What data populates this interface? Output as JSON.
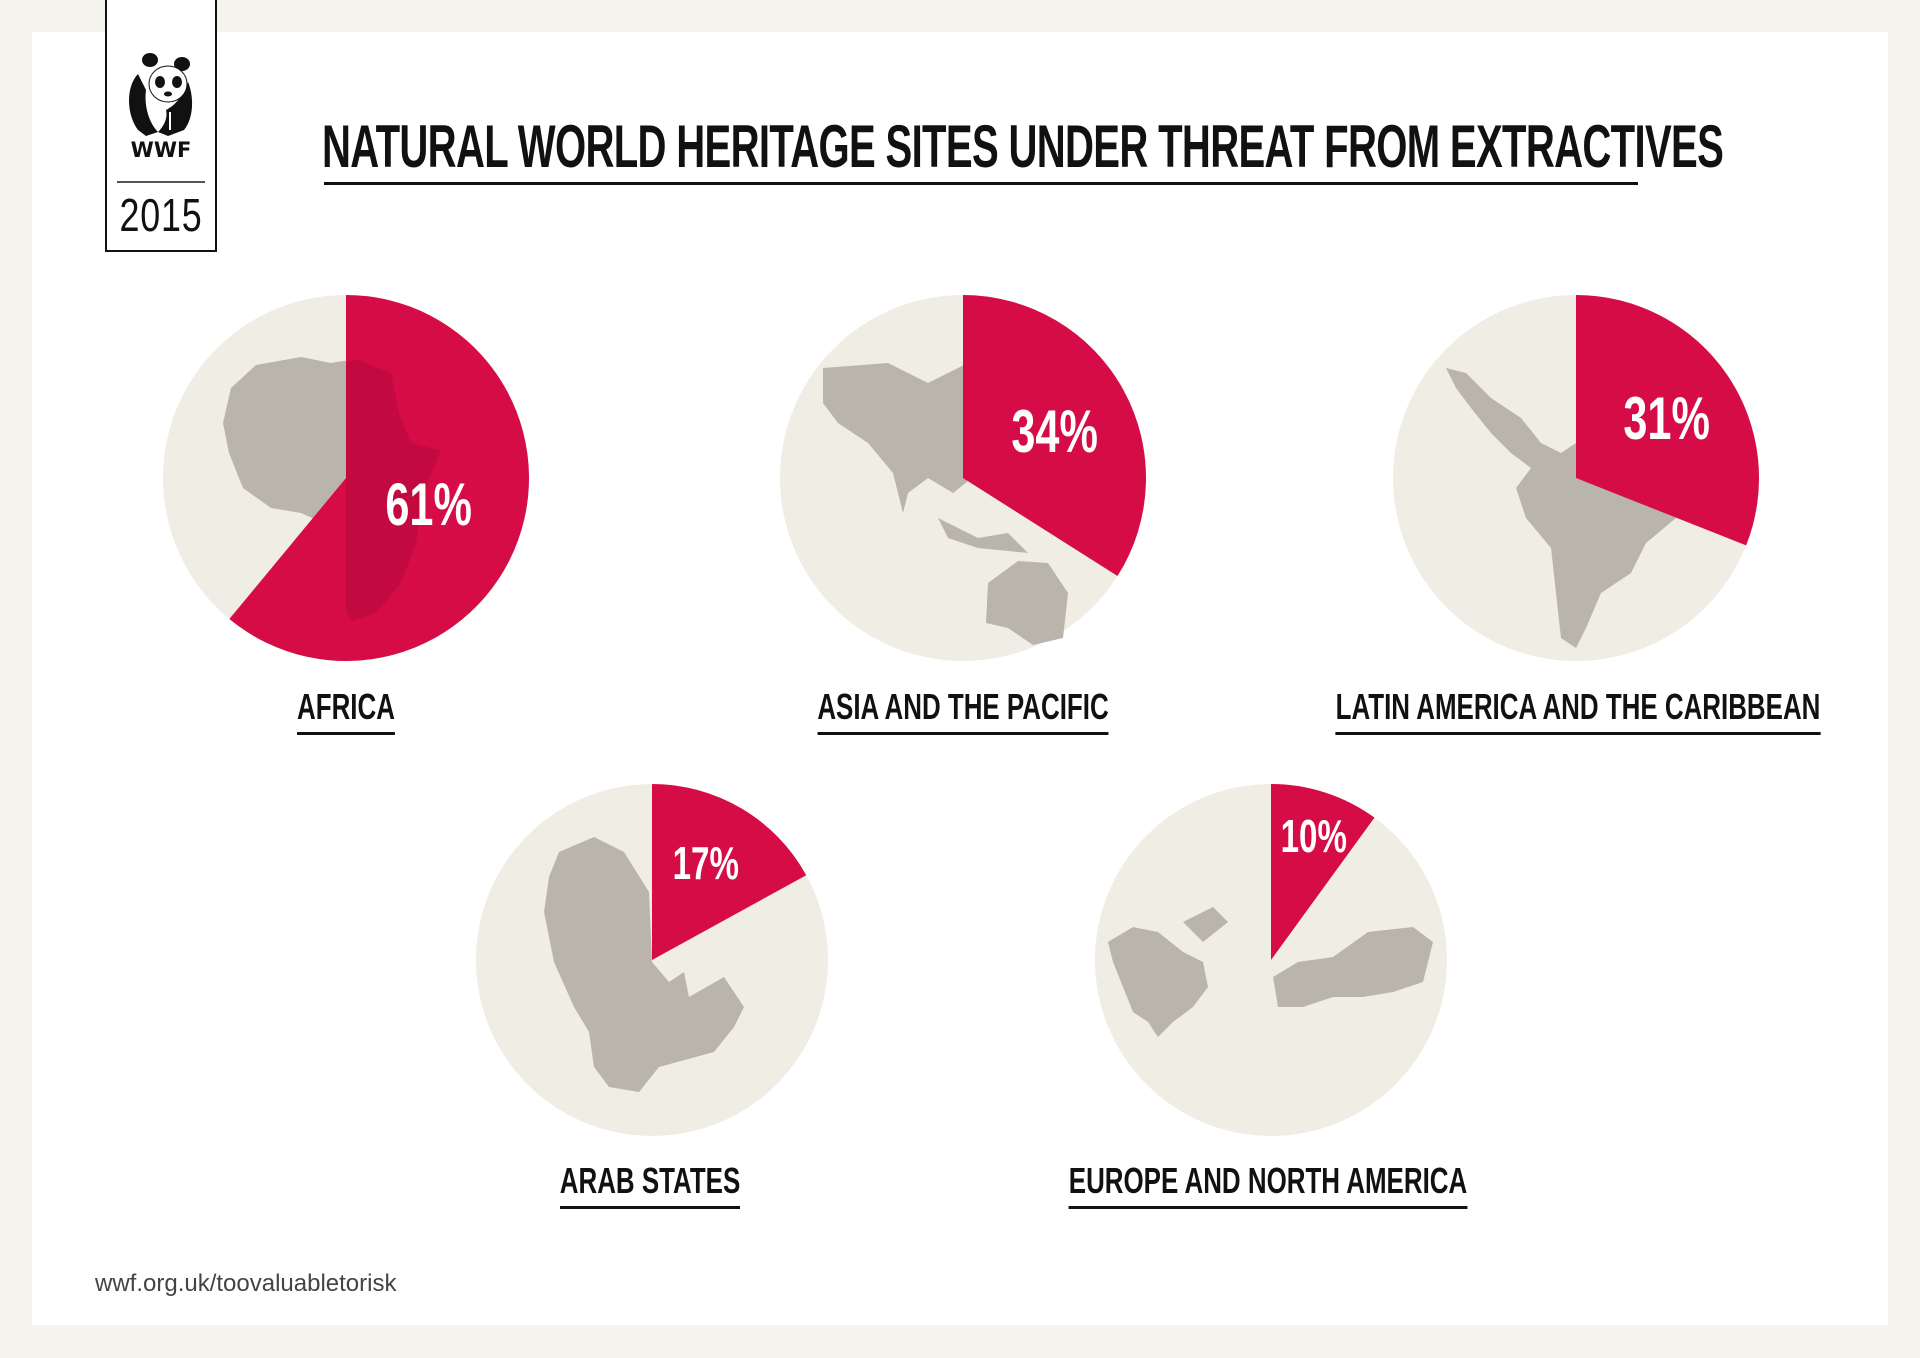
{
  "header": {
    "logo_text": "WWF",
    "year": "2015",
    "title": "NATURAL WORLD HERITAGE SITES UNDER THREAT FROM EXTRACTIVES"
  },
  "colors": {
    "threat": "#d50c45",
    "threat_overlay": "#b80d3c",
    "circle": "#efede4",
    "map": "#b9b5ad",
    "frame": "#f6f4ef",
    "card": "#ffffff"
  },
  "regions": [
    {
      "name": "AFRICA",
      "percent_label": "61%",
      "value": 61
    },
    {
      "name": "ASIA AND THE PACIFIC",
      "percent_label": "34%",
      "value": 34
    },
    {
      "name": "LATIN AMERICA AND THE CARIBBEAN",
      "percent_label": "31%",
      "value": 31
    },
    {
      "name": "ARAB STATES",
      "percent_label": "17%",
      "value": 17
    },
    {
      "name": "EUROPE AND NORTH AMERICA",
      "percent_label": "10%",
      "value": 10
    }
  ],
  "footer": {
    "url": "wwf.org.uk/toovaluabletorisk"
  },
  "chart_data": {
    "type": "pie",
    "title": "NATURAL WORLD HERITAGE SITES UNDER THREAT FROM EXTRACTIVES",
    "subtitle": "WWF 2015",
    "categories": [
      "AFRICA",
      "ASIA AND THE PACIFIC",
      "LATIN AMERICA AND THE CARIBBEAN",
      "ARAB STATES",
      "EUROPE AND NORTH AMERICA"
    ],
    "values": [
      61,
      34,
      31,
      17,
      10
    ],
    "unit": "% of natural World Heritage sites under threat",
    "charts": [
      {
        "label": "AFRICA",
        "slices": [
          {
            "name": "under threat",
            "value": 61
          },
          {
            "name": "other",
            "value": 39
          }
        ]
      },
      {
        "label": "ASIA AND THE PACIFIC",
        "slices": [
          {
            "name": "under threat",
            "value": 34
          },
          {
            "name": "other",
            "value": 66
          }
        ]
      },
      {
        "label": "LATIN AMERICA AND THE CARIBBEAN",
        "slices": [
          {
            "name": "under threat",
            "value": 31
          },
          {
            "name": "other",
            "value": 69
          }
        ]
      },
      {
        "label": "ARAB STATES",
        "slices": [
          {
            "name": "under threat",
            "value": 17
          },
          {
            "name": "other",
            "value": 83
          }
        ]
      },
      {
        "label": "EUROPE AND NORTH AMERICA",
        "slices": [
          {
            "name": "under threat",
            "value": 10
          },
          {
            "name": "other",
            "value": 90
          }
        ]
      }
    ],
    "legend": null,
    "annotation": "wwf.org.uk/toovaluabletorisk"
  }
}
